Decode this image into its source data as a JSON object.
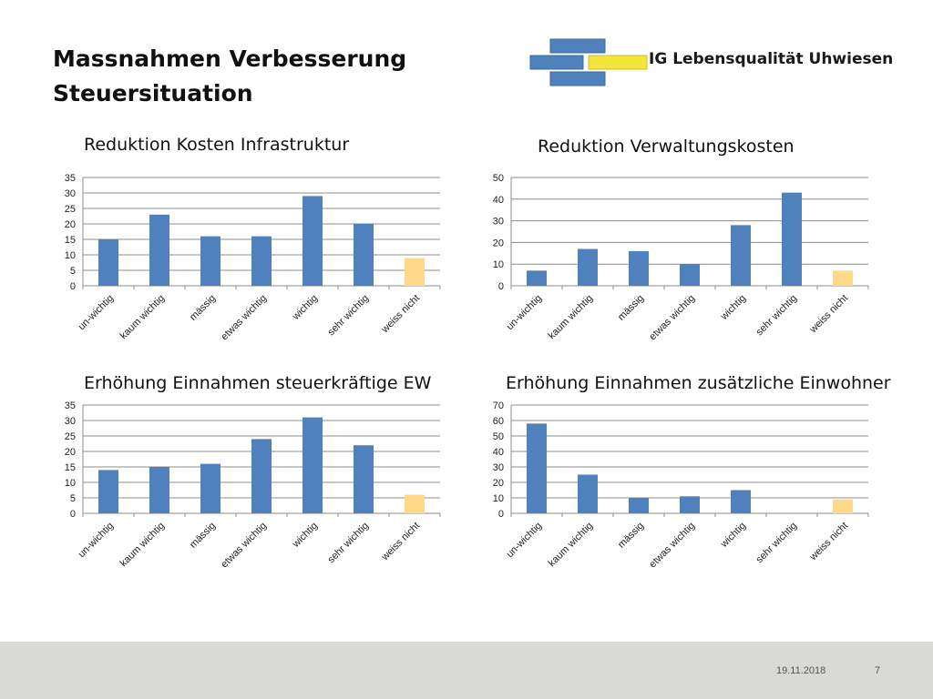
{
  "title": {
    "line1": "Massnahmen Verbesserung",
    "line2": "Steuersituation"
  },
  "logo": {
    "text": "IG Lebensqualität Uhwiesen",
    "brick_color": "#4f81bd",
    "accent_color": "#f2e63a"
  },
  "colors": {
    "bar": "#4f81bd",
    "bar_highlight": "#ffd98a",
    "grid": "#8c8c8c"
  },
  "footer": {
    "date": "19.11.2018",
    "page": "7"
  },
  "chart_data": [
    {
      "type": "bar",
      "title": "Reduktion Kosten Infrastruktur",
      "categories": [
        "un-wichtig",
        "kaum wichtig",
        "mässig",
        "etwas wichtig",
        "wichtig",
        "sehr wichtig",
        "weiss nicht"
      ],
      "values": [
        15,
        23,
        16,
        16,
        29,
        20,
        9
      ],
      "ylim": [
        0,
        35
      ],
      "yticks": [
        0,
        5,
        10,
        15,
        20,
        25,
        30,
        35
      ],
      "grid": true,
      "highlight_last": true
    },
    {
      "type": "bar",
      "title": "Reduktion Verwaltungskosten",
      "categories": [
        "un-wichtig",
        "kaum wichtig",
        "mässig",
        "etwas wichtig",
        "wichtig",
        "sehr wichtig",
        "weiss nicht"
      ],
      "values": [
        7,
        17,
        16,
        10,
        28,
        43,
        7
      ],
      "ylim": [
        0,
        50
      ],
      "yticks": [
        0,
        10,
        20,
        30,
        40,
        50
      ],
      "grid": true,
      "highlight_last": true
    },
    {
      "type": "bar",
      "title": "Erhöhung Einnahmen steuerkräftige EW",
      "categories": [
        "un-wichtig",
        "kaum wichtig",
        "mässig",
        "etwas wichtig",
        "wichtig",
        "sehr wichtig",
        "weiss nicht"
      ],
      "values": [
        14,
        15,
        16,
        24,
        31,
        22,
        6
      ],
      "ylim": [
        0,
        35
      ],
      "yticks": [
        0,
        5,
        10,
        15,
        20,
        25,
        30,
        35
      ],
      "grid": true,
      "highlight_last": true
    },
    {
      "type": "bar",
      "title": "Erhöhung Einnahmen zusätzliche Einwohner",
      "categories": [
        "un-wichtig",
        "kaum wichtig",
        "mässig",
        "etwas wichtig",
        "wichtig",
        "sehr wichtig",
        "weiss nicht"
      ],
      "values": [
        58,
        25,
        10,
        11,
        15,
        0,
        9
      ],
      "ylim": [
        0,
        70
      ],
      "yticks": [
        0,
        10,
        20,
        30,
        40,
        50,
        60,
        70
      ],
      "grid": true,
      "highlight_last": true
    }
  ]
}
